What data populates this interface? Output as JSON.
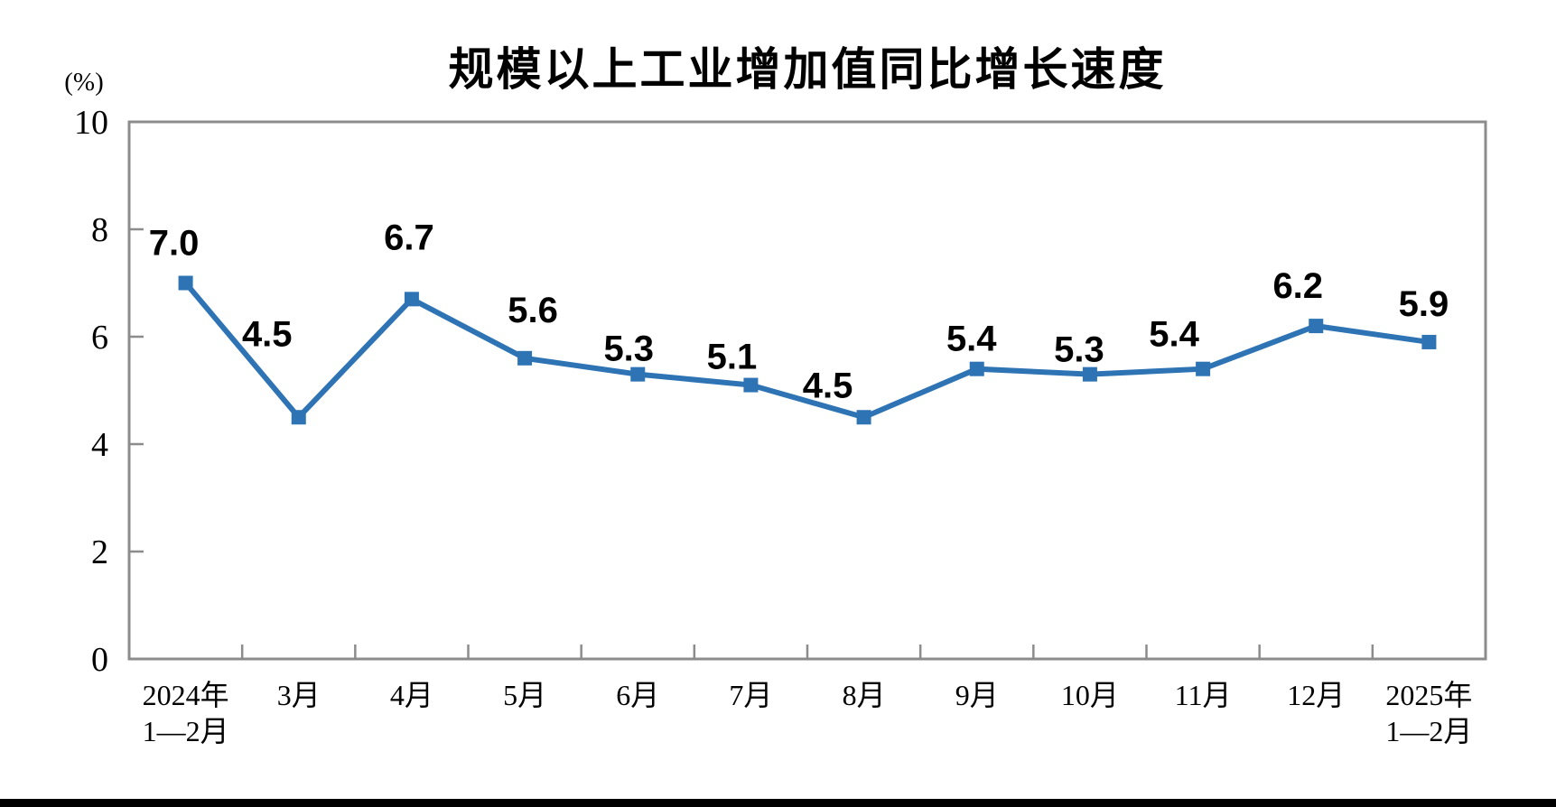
{
  "chart_data": {
    "type": "line",
    "title": "规模以上工业增加值同比增长速度",
    "xlabel": "",
    "ylabel": "(%)",
    "categories": [
      "2024年\n1—2月",
      "3月",
      "4月",
      "5月",
      "6月",
      "7月",
      "8月",
      "9月",
      "10月",
      "11月",
      "12月",
      "2025年\n1—2月"
    ],
    "values": [
      7.0,
      4.5,
      6.7,
      5.6,
      5.3,
      5.1,
      4.5,
      5.4,
      5.3,
      5.4,
      6.2,
      5.9
    ],
    "data_labels": [
      "7.0",
      "4.5",
      "6.7",
      "5.6",
      "5.3",
      "5.1",
      "4.5",
      "5.4",
      "5.3",
      "5.4",
      "6.2",
      "5.9"
    ],
    "ylim": [
      0,
      10
    ],
    "yticks": [
      0,
      2,
      4,
      6,
      8,
      10
    ],
    "grid": false,
    "legend": "none",
    "marker": "square",
    "colors": {
      "line": "#2E74B5",
      "axis": "#8C8C8C",
      "text": "#000000",
      "background": "#FFFFFF",
      "bottom_bar": "#000000"
    }
  }
}
